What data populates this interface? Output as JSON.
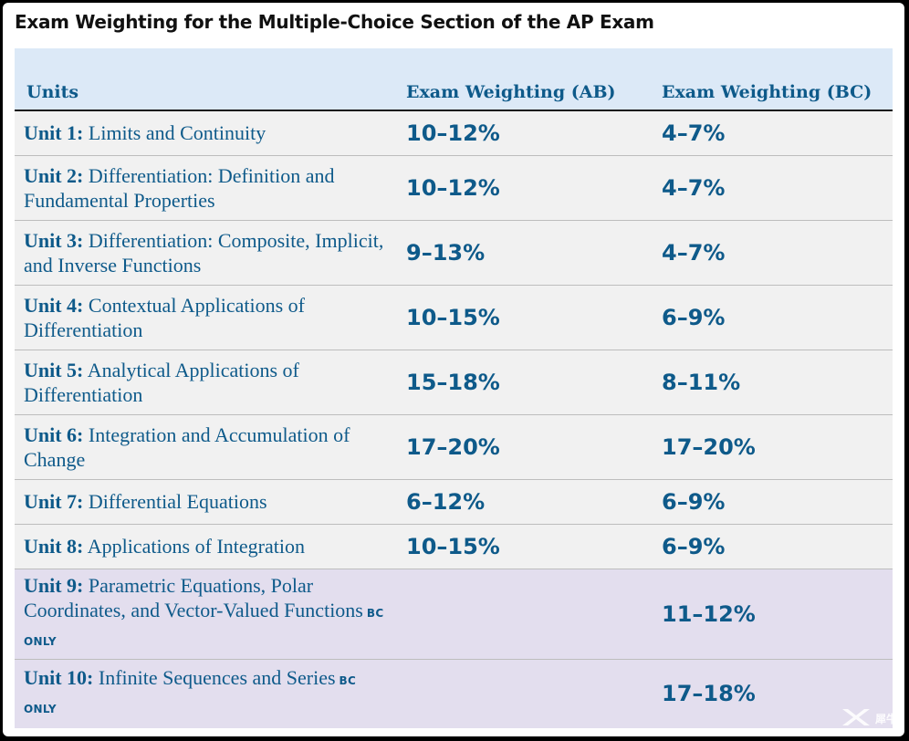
{
  "title": "Exam Weighting for the Multiple-Choice Section of the AP Exam",
  "headers": {
    "units": "Units",
    "ab": "Exam Weighting (AB)",
    "bc": "Exam Weighting (BC)"
  },
  "rows": [
    {
      "unit": "Unit 1:",
      "name": "Limits and Continuity",
      "ab": "10–12%",
      "bc": "4–7%"
    },
    {
      "unit": "Unit 2:",
      "name": "Differentiation: Definition and Fundamental Properties",
      "ab": "10–12%",
      "bc": "4–7%"
    },
    {
      "unit": "Unit 3:",
      "name": "Differentiation: Composite, Implicit, and Inverse Functions",
      "ab": "9–13%",
      "bc": "4–7%"
    },
    {
      "unit": "Unit 4:",
      "name": "Contextual Applications of Differentiation",
      "ab": "10–15%",
      "bc": "6–9%"
    },
    {
      "unit": "Unit 5:",
      "name": "Analytical Applications of Differentiation",
      "ab": "15–18%",
      "bc": "8–11%"
    },
    {
      "unit": "Unit 6:",
      "name": "Integration and Accumulation of Change",
      "ab": "17–20%",
      "bc": "17–20%"
    },
    {
      "unit": "Unit 7:",
      "name": "Differential Equations",
      "ab": "6–12%",
      "bc": "6–9%"
    },
    {
      "unit": "Unit 8:",
      "name": "Applications of Integration",
      "ab": "10–15%",
      "bc": "6–9%"
    },
    {
      "unit": "Unit 9:",
      "name": "Parametric Equations, Polar Coordinates, and Vector-Valued Functions",
      "tag": "BC ONLY",
      "ab": "",
      "bc": "11–12%"
    },
    {
      "unit": "Unit 10:",
      "name": "Infinite Sequences and Series",
      "tag": "BC ONLY",
      "ab": "",
      "bc": "17–18%"
    }
  ],
  "watermark": {
    "icon": "brand-logo-icon",
    "text": "犀牛"
  },
  "colors": {
    "accent": "#0e5a8a",
    "header_bg": "#dce9f7",
    "row_bg": "#f1f1f1",
    "bc_row_bg": "#e3deee"
  }
}
